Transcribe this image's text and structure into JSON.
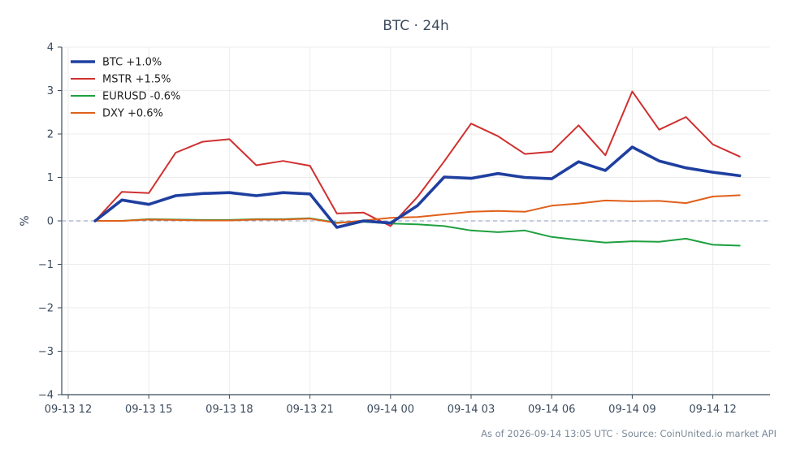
{
  "chart_data": {
    "type": "line",
    "title": "BTC · 24h",
    "xlabel": "",
    "ylabel": "%",
    "ylim": [
      -4,
      4
    ],
    "yticks": [
      4,
      3,
      2,
      1,
      0,
      -1,
      -2,
      -3,
      -4
    ],
    "ytick_labels": [
      "4",
      "3",
      "2",
      "1",
      "0",
      "−1",
      "−2",
      "−3",
      "−4"
    ],
    "xticks": [
      "09-13 12",
      "09-13 15",
      "09-13 18",
      "09-13 21",
      "09-14 00",
      "09-14 03",
      "09-14 06",
      "09-14 09",
      "09-14 12"
    ],
    "x": [
      "09-13 13:00",
      "09-13 14:00",
      "09-13 15:00",
      "09-13 16:00",
      "09-13 17:00",
      "09-13 18:00",
      "09-13 19:00",
      "09-13 20:00",
      "09-13 21:00",
      "09-13 22:00",
      "09-13 23:00",
      "09-14 00:00",
      "09-14 01:00",
      "09-14 02:00",
      "09-14 03:00",
      "09-14 04:00",
      "09-14 05:00",
      "09-14 06:00",
      "09-14 07:00",
      "09-14 08:00",
      "09-14 09:00",
      "09-14 10:00",
      "09-14 11:00",
      "09-14 12:00",
      "09-14 13:00"
    ],
    "grid": true,
    "zero_line": true,
    "legend_position": "top-left",
    "series": [
      {
        "name": "BTC +1.0%",
        "color": "#1f3fa0",
        "emphasis": true,
        "values": [
          0.0,
          0.48,
          0.38,
          0.58,
          0.63,
          0.65,
          0.58,
          0.65,
          0.62,
          -0.15,
          0.0,
          -0.05,
          0.35,
          1.01,
          0.98,
          1.09,
          1.0,
          0.97,
          1.36,
          1.16,
          1.7,
          1.38,
          1.22,
          1.12,
          1.04
        ]
      },
      {
        "name": "MSTR +1.5%",
        "color": "#d03030",
        "emphasis": false,
        "values": [
          0.0,
          0.67,
          0.64,
          1.57,
          1.82,
          1.88,
          1.28,
          1.38,
          1.27,
          0.17,
          0.19,
          -0.12,
          0.55,
          1.37,
          2.24,
          1.95,
          1.54,
          1.59,
          2.2,
          1.51,
          2.98,
          2.1,
          2.39,
          1.76,
          1.48
        ]
      },
      {
        "name": "EURUSD -0.6%",
        "color": "#1fa040",
        "emphasis": false,
        "values": [
          0.0,
          0.0,
          0.04,
          0.03,
          0.02,
          0.02,
          0.04,
          0.04,
          0.06,
          -0.04,
          -0.02,
          -0.06,
          -0.08,
          -0.12,
          -0.22,
          -0.26,
          -0.22,
          -0.37,
          -0.44,
          -0.5,
          -0.47,
          -0.48,
          -0.41,
          -0.55,
          -0.57
        ]
      },
      {
        "name": "DXY +0.6%",
        "color": "#e0601a",
        "emphasis": false,
        "values": [
          0.0,
          0.0,
          0.03,
          0.02,
          0.01,
          0.01,
          0.03,
          0.03,
          0.05,
          -0.05,
          0.01,
          0.07,
          0.09,
          0.15,
          0.21,
          0.23,
          0.21,
          0.35,
          0.4,
          0.47,
          0.45,
          0.46,
          0.41,
          0.56,
          0.59
        ]
      }
    ]
  },
  "footer": "As of 2026-09-14 13:05 UTC · Source: CoinUnited.io market API"
}
